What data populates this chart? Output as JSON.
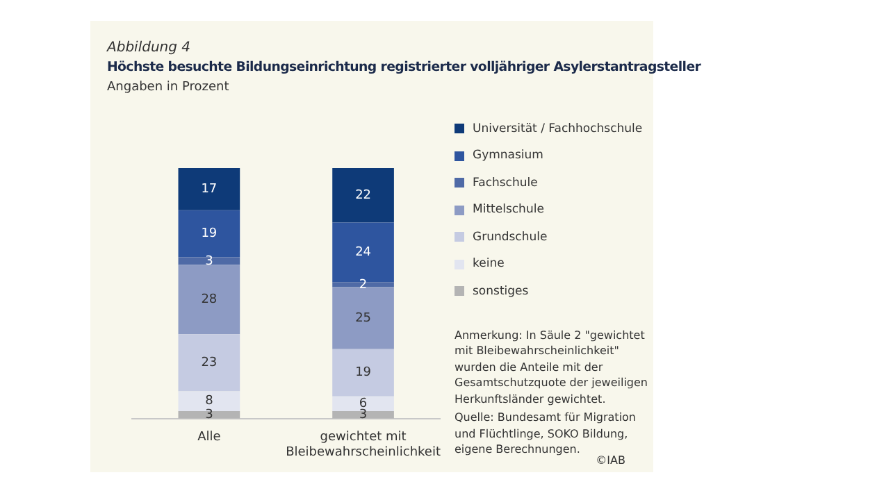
{
  "chart_data": {
    "type": "bar",
    "stacked": true,
    "title": "Höchste besuchte Bildungseinrichtung registrierter volljähriger Asylerstantragsteller",
    "subtitle": "Angaben in Prozent",
    "categories": [
      "Alle",
      "gewichtet mit Bleibewahrscheinlichkeit"
    ],
    "series": [
      {
        "name": "sonstiges",
        "color": "#b4b4b4",
        "values": [
          3,
          3
        ]
      },
      {
        "name": "keine",
        "color": "#e2e5f0",
        "values": [
          8,
          6
        ]
      },
      {
        "name": "Grundschule",
        "color": "#c5cbe2",
        "values": [
          23,
          19
        ]
      },
      {
        "name": "Mittelschule",
        "color": "#8d9bc4",
        "values": [
          28,
          25
        ]
      },
      {
        "name": "Fachschule",
        "color": "#4f6aa6",
        "values": [
          3,
          2
        ]
      },
      {
        "name": "Gymnasium",
        "color": "#2e559f",
        "values": [
          19,
          24
        ]
      },
      {
        "name": "Universität / Fachhochschule",
        "color": "#0e3a78",
        "values": [
          17,
          22
        ]
      }
    ],
    "data_labels": true,
    "legend": "right",
    "grid": false,
    "annotations": [
      "Abbildung 4",
      "Anmerkung: In Säule 2 \"gewichtet mit Bleibewahrscheinlichkeit\" wurden die Anteile mit der Gesamtschutzquote der jeweiligen Herkunftsländer gewichtet.",
      "Quelle: Bundesamt für Migration und Flüchtlinge, SOKO Bildung, eigene Berechnungen.",
      "©IAB"
    ]
  }
}
